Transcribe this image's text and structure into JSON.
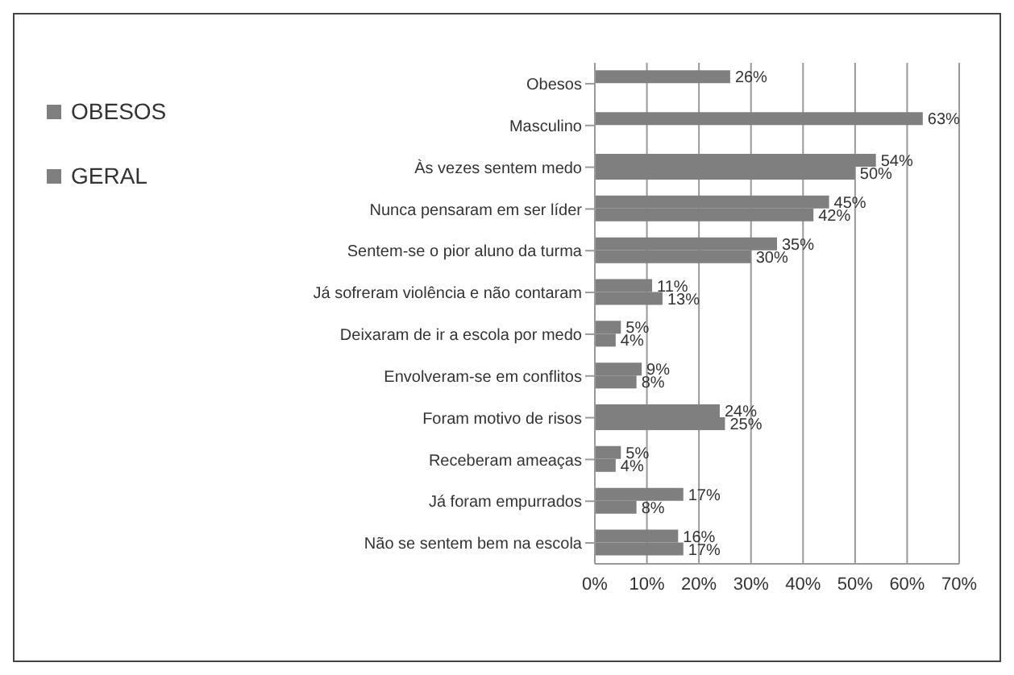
{
  "chart_data": {
    "type": "bar",
    "orientation": "horizontal",
    "categories": [
      "Obesos",
      "Masculino",
      "Às vezes sentem medo",
      "Nunca pensaram em ser líder",
      "Sentem-se o pior aluno da turma",
      "Já sofreram violência e não contaram",
      "Deixaram de ir a escola por medo",
      "Envolveram-se em conflitos",
      "Foram motivo de risos",
      "Receberam ameaças",
      "Já foram empurrados",
      "Não se sentem bem na escola"
    ],
    "series": [
      {
        "name": "OBESOS",
        "color": "#7f7f7f",
        "values": [
          26,
          63,
          54,
          45,
          35,
          11,
          5,
          9,
          24,
          5,
          17,
          16
        ],
        "value_labels": [
          "26%",
          "63%",
          "54%",
          "45%",
          "35%",
          "11%",
          "5%",
          "9%",
          "24%",
          "5%",
          "17%",
          "16%"
        ]
      },
      {
        "name": "GERAL",
        "color": "#7f7f7f",
        "values": [
          null,
          null,
          50,
          42,
          30,
          13,
          4,
          8,
          25,
          4,
          8,
          17
        ],
        "value_labels": [
          null,
          null,
          "50%",
          "42%",
          "30%",
          "13%",
          "4%",
          "8%",
          "25%",
          "4%",
          "8%",
          "17%"
        ]
      }
    ],
    "xlim": [
      0,
      70
    ],
    "xticks": [
      {
        "value": 0,
        "label": "0%"
      },
      {
        "value": 10,
        "label": "10%"
      },
      {
        "value": 20,
        "label": "20%"
      },
      {
        "value": 30,
        "label": "30%"
      },
      {
        "value": 40,
        "label": "40%"
      },
      {
        "value": 50,
        "label": "50%"
      },
      {
        "value": 60,
        "label": "60%"
      },
      {
        "value": 70,
        "label": "70%"
      }
    ],
    "grid": "x",
    "legend": "top left"
  }
}
